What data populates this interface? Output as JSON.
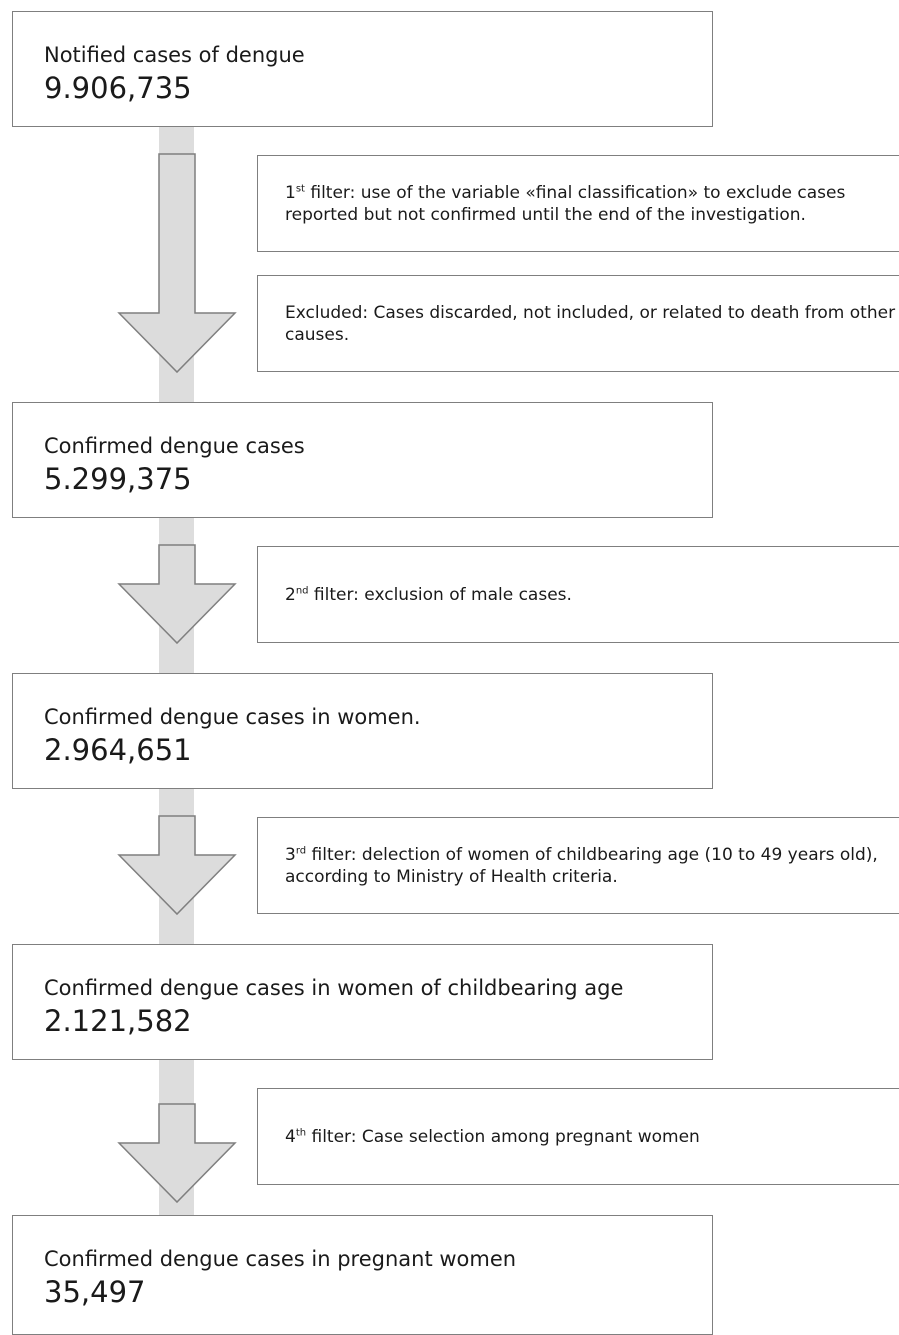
{
  "stages": [
    {
      "label": "Notified cases of dengue",
      "count": "9.906,735"
    },
    {
      "label": "Confirmed dengue cases",
      "count": "5.299,375"
    },
    {
      "label": "Confirmed dengue cases in women.",
      "count": "2.964,651"
    },
    {
      "label": "Confirmed dengue  cases in women of childbearing age",
      "count": "2.121,582"
    },
    {
      "label": "Confirmed dengue cases in pregnant women",
      "count": "35,497"
    }
  ],
  "filters": [
    {
      "ordinal": "1",
      "suffix": "st",
      "text": " filter: use of the variable «final classification» to exclude cases reported but not confirmed until the end of the investigation."
    },
    {
      "ordinal": "2",
      "suffix": "nd",
      "text": " filter: exclusion of male cases."
    },
    {
      "ordinal": "3",
      "suffix": "rd",
      "text": " filter: delection of women of childbearing age (10 to 49 years old), according to Ministry of Health criteria."
    },
    {
      "ordinal": "4",
      "suffix": "th",
      "text": " filter: Case selection among pregnant women"
    }
  ],
  "exclusion": {
    "text": "Excluded: Cases discarded, not included, or related to death from other causes."
  },
  "colors": {
    "spine": "#dddddd",
    "arrow_fill": "#dcdcdc",
    "border": "#7f7f7f"
  }
}
